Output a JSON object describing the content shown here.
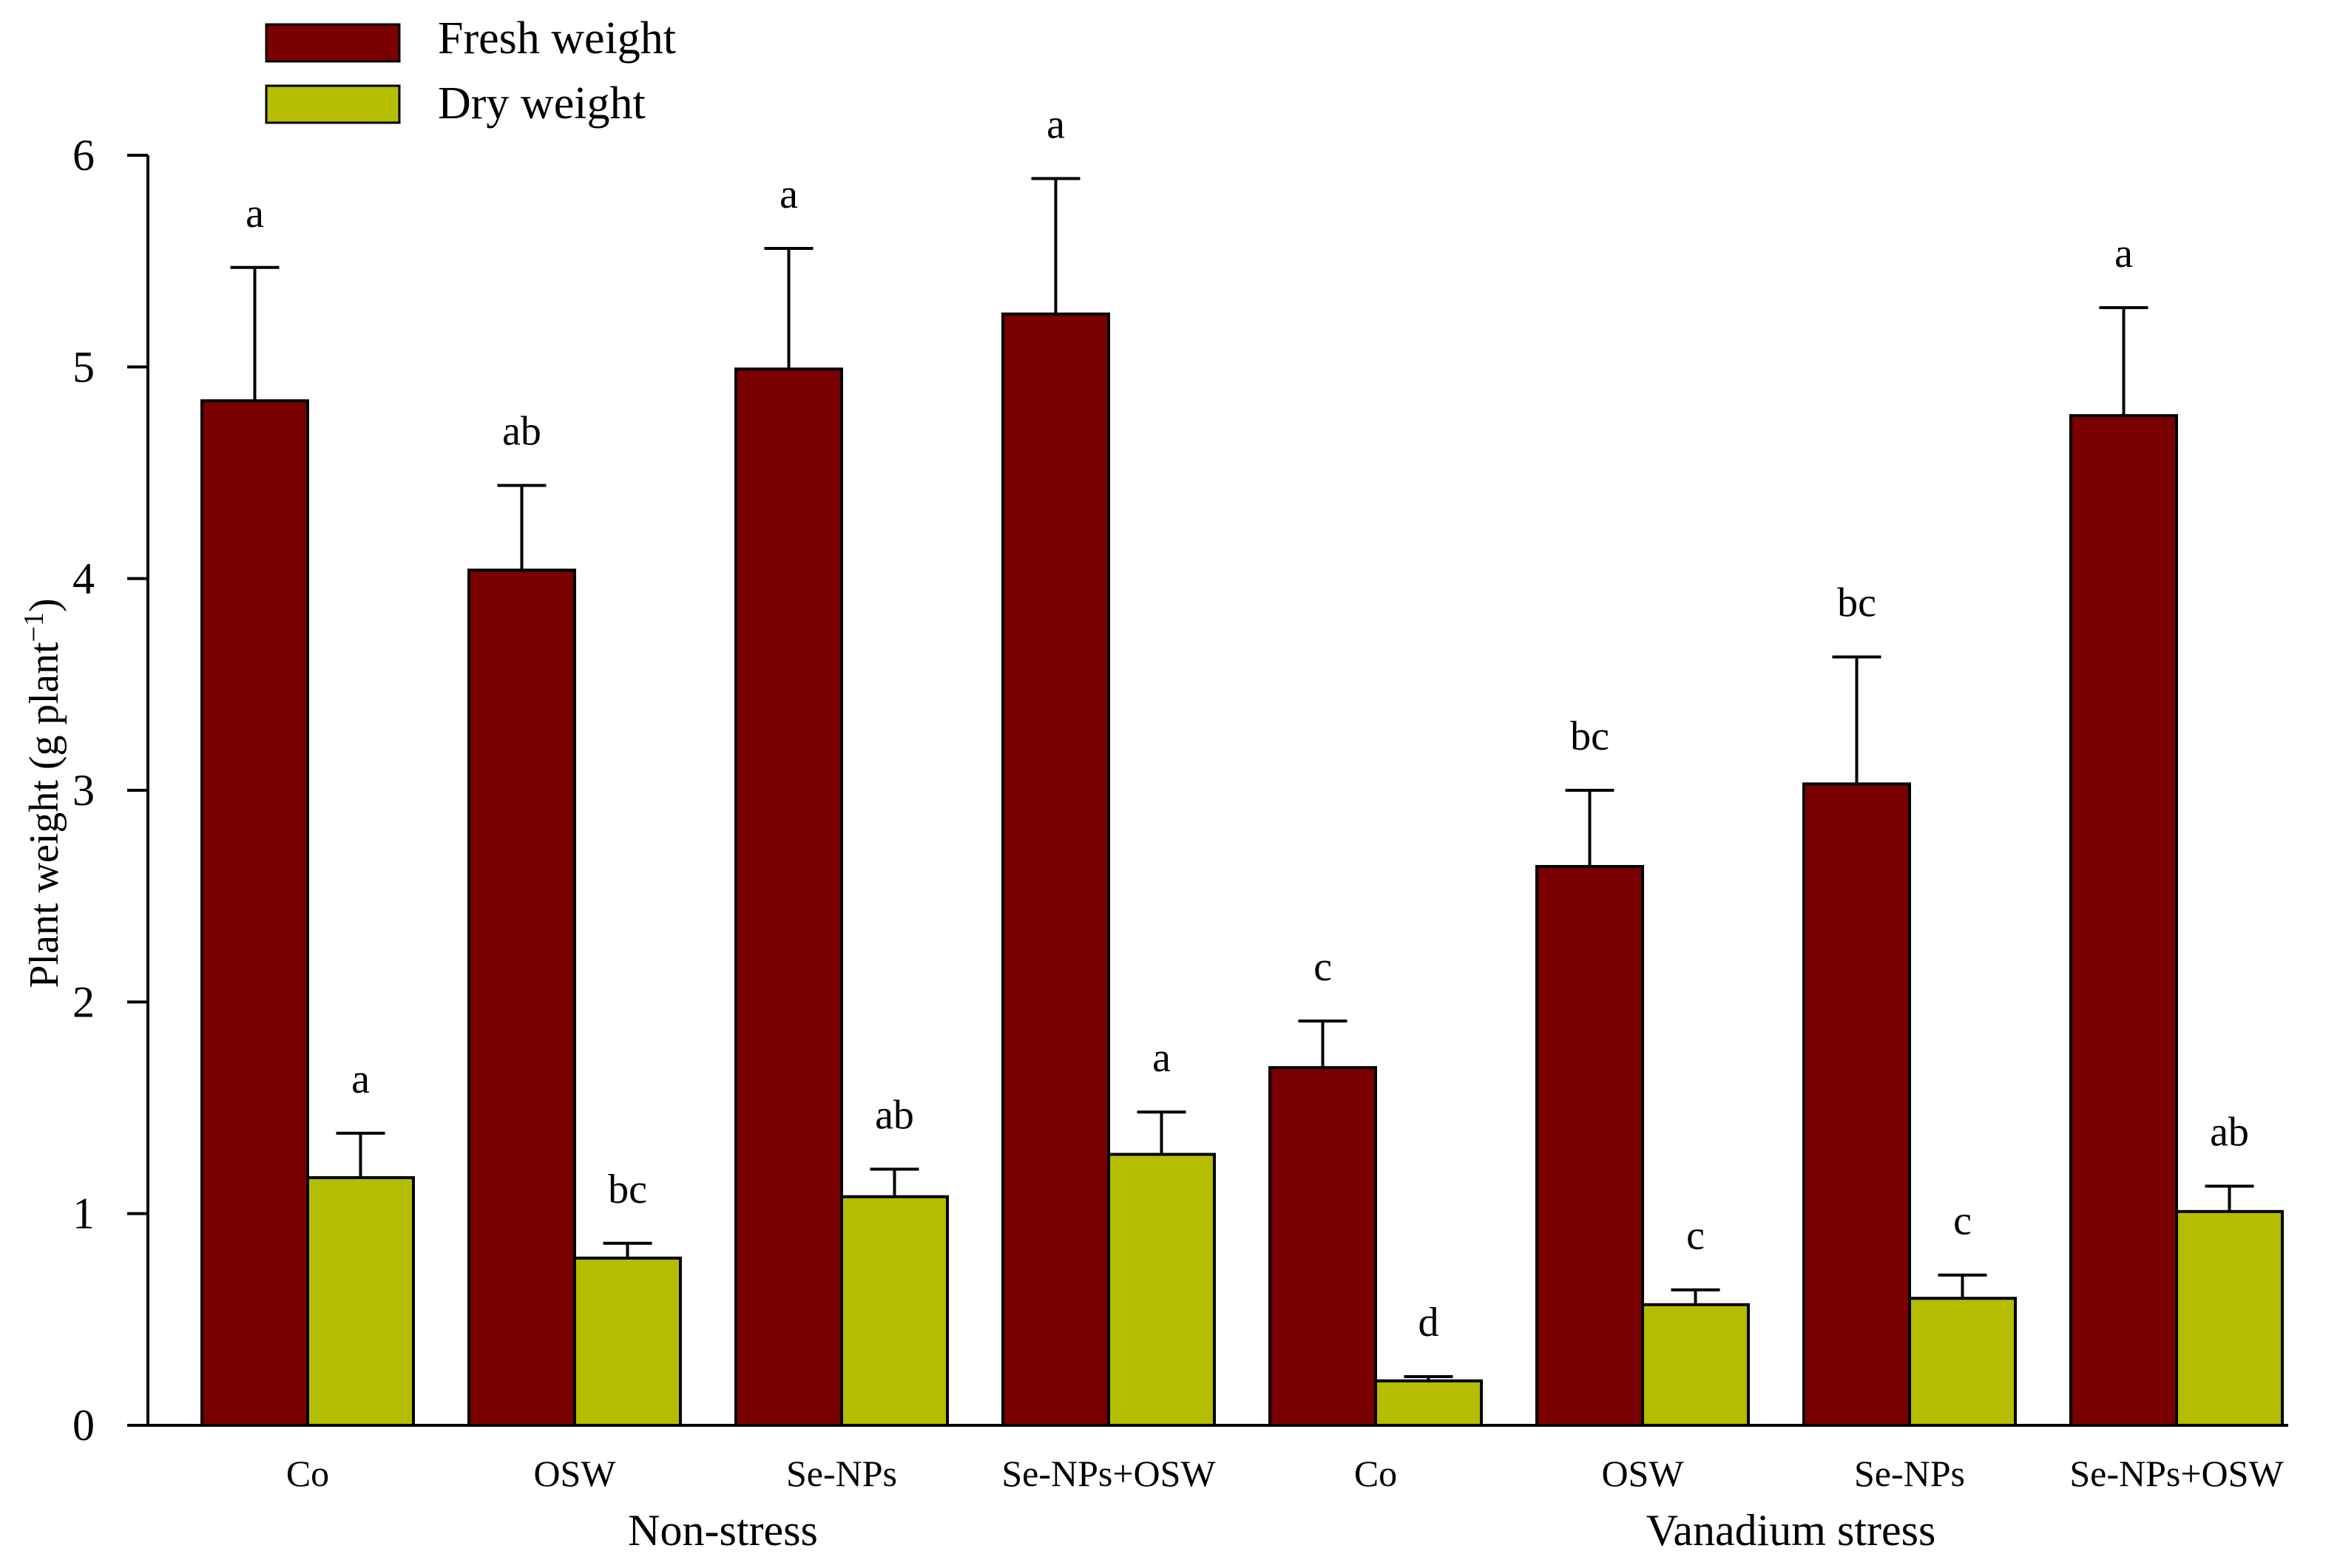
{
  "chart_data": {
    "type": "bar",
    "title": "",
    "xlabel": "",
    "ylabel": "Plant weight (g plant",
    "ylabel_sup": "−1",
    "ylabel_close": ")",
    "ylim": [
      0,
      6
    ],
    "yticks": [
      "0",
      "1",
      "2",
      "3",
      "4",
      "5",
      "6"
    ],
    "ytick_values": [
      0,
      1,
      2,
      3,
      4,
      5,
      6
    ],
    "categories": [
      "Co",
      "OSW",
      "Se-NPs",
      "Se-NPs+OSW",
      "Co",
      "OSW",
      "Se-NPs",
      "Se-NPs+OSW"
    ],
    "groups": [
      {
        "label": "Non-stress",
        "first": 0,
        "last": 3
      },
      {
        "label": "Vanadium stress",
        "first": 4,
        "last": 7
      }
    ],
    "legend_position": "top-left",
    "series": [
      {
        "name": "Fresh weight",
        "color": "#7a0000",
        "values": [
          4.84,
          4.04,
          4.99,
          5.25,
          1.69,
          2.64,
          3.03,
          4.77
        ],
        "errors": [
          0.63,
          0.4,
          0.57,
          0.64,
          0.22,
          0.36,
          0.6,
          0.51
        ],
        "sig": [
          "a",
          "ab",
          "a",
          "a",
          "c",
          "bc",
          "bc",
          "a"
        ]
      },
      {
        "name": "Dry weight",
        "color": "#b5bd00",
        "values": [
          1.17,
          0.79,
          1.08,
          1.28,
          0.21,
          0.57,
          0.6,
          1.01
        ],
        "errors": [
          0.21,
          0.07,
          0.13,
          0.2,
          0.02,
          0.07,
          0.11,
          0.12
        ],
        "sig": [
          "a",
          "bc",
          "ab",
          "a",
          "d",
          "c",
          "c",
          "ab"
        ]
      }
    ]
  }
}
